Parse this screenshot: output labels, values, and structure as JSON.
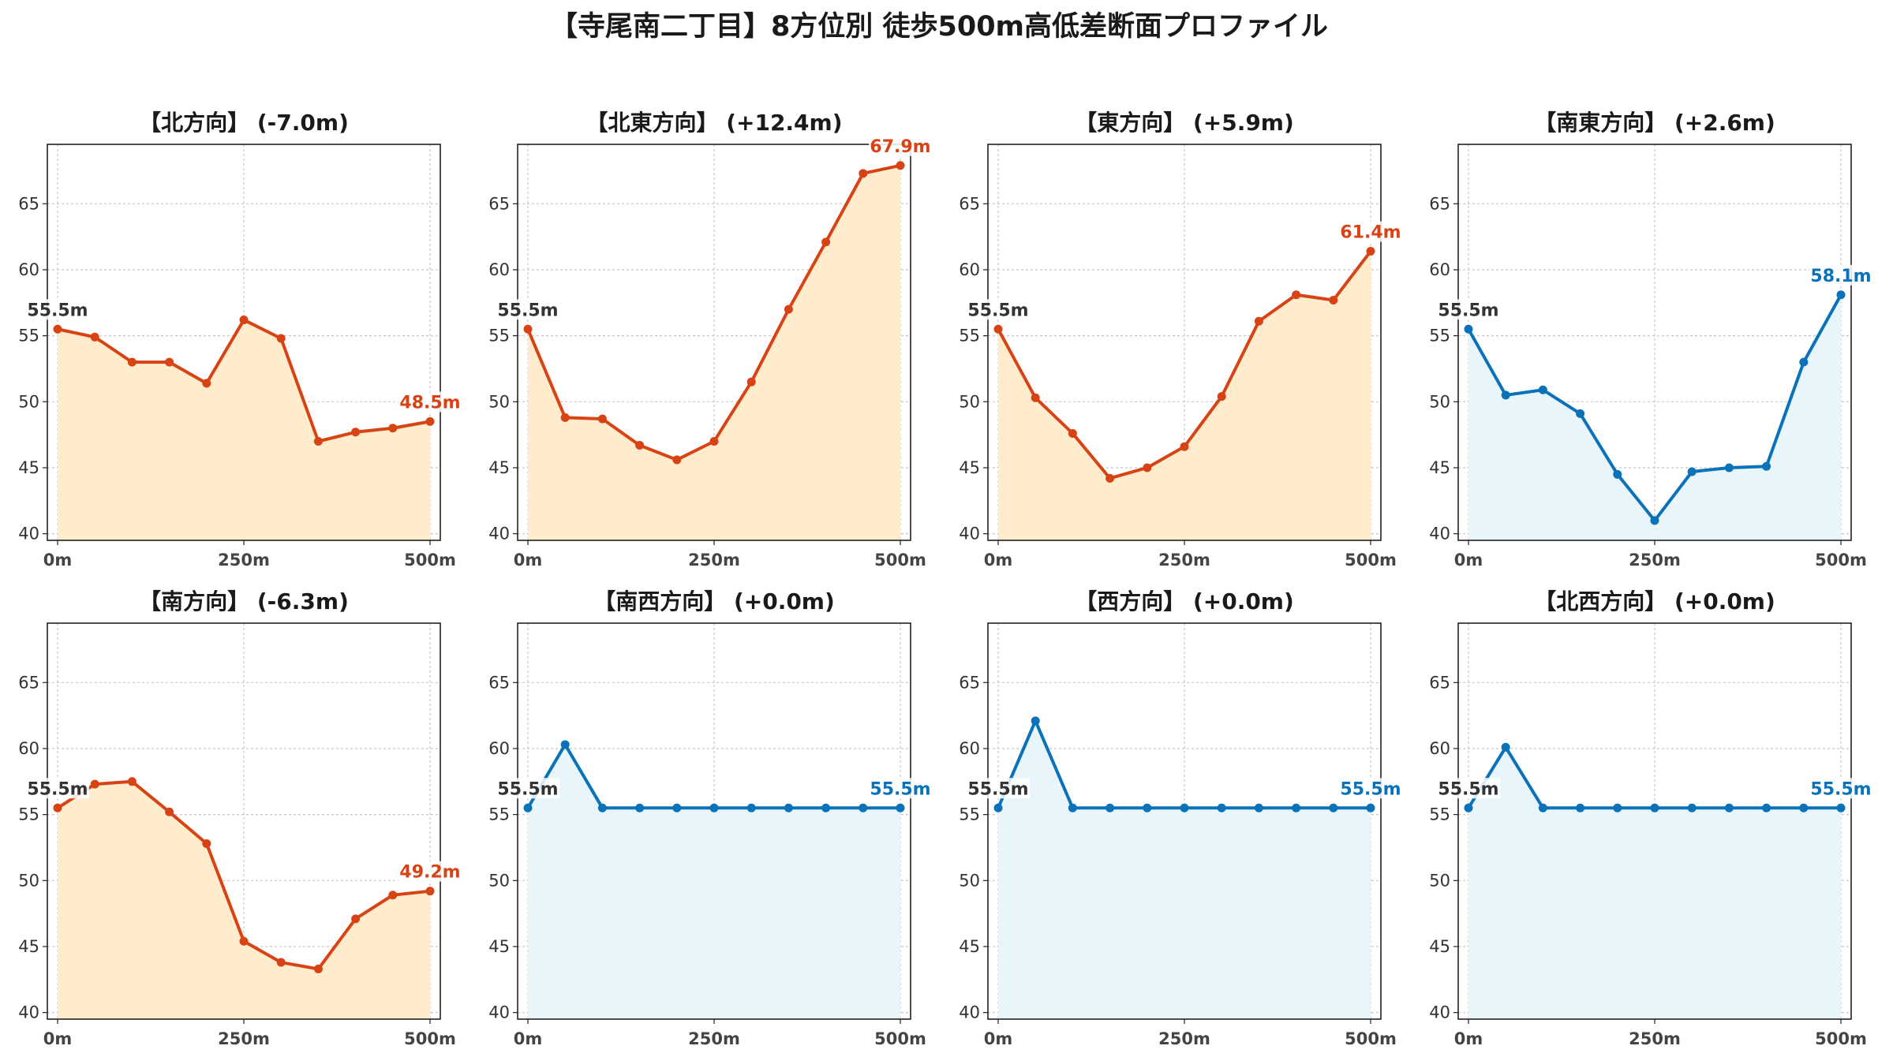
{
  "title": "【寺尾南二丁目】8方位別 徒歩500m高低差断面プロファイル",
  "colors": {
    "up_line": "#d84315",
    "up_fill": "#ffeccc",
    "down_line": "#0a72b8",
    "down_fill": "#e8f5fb",
    "start_label": "#333333"
  },
  "chart_data": [
    {
      "type": "line",
      "title": "【北方向】 (-7.0m)",
      "trend": "up",
      "x": [
        0,
        50,
        100,
        150,
        200,
        250,
        300,
        350,
        400,
        450,
        500
      ],
      "y": [
        55.5,
        54.9,
        53.0,
        53.0,
        51.4,
        56.2,
        54.8,
        47.0,
        47.7,
        48.0,
        48.5
      ],
      "start_label": "55.5m",
      "end_label": "48.5m",
      "xticks": [
        "0m",
        "250m",
        "500m"
      ],
      "yticks": [
        40,
        45,
        50,
        55,
        60,
        65
      ],
      "ylim": [
        39.5,
        69.5
      ],
      "grid": true
    },
    {
      "type": "line",
      "title": "【北東方向】 (+12.4m)",
      "trend": "up",
      "x": [
        0,
        50,
        100,
        150,
        200,
        250,
        300,
        350,
        400,
        450,
        500
      ],
      "y": [
        55.5,
        48.8,
        48.7,
        46.7,
        45.6,
        47.0,
        51.5,
        57.0,
        62.1,
        67.3,
        67.9
      ],
      "start_label": "55.5m",
      "end_label": "67.9m",
      "xticks": [
        "0m",
        "250m",
        "500m"
      ],
      "yticks": [
        40,
        45,
        50,
        55,
        60,
        65
      ],
      "ylim": [
        39.5,
        69.5
      ],
      "grid": true
    },
    {
      "type": "line",
      "title": "【東方向】 (+5.9m)",
      "trend": "up",
      "x": [
        0,
        50,
        100,
        150,
        200,
        250,
        300,
        350,
        400,
        450,
        500
      ],
      "y": [
        55.5,
        50.3,
        47.6,
        44.2,
        45.0,
        46.6,
        50.4,
        56.1,
        58.1,
        57.7,
        61.4
      ],
      "start_label": "55.5m",
      "end_label": "61.4m",
      "xticks": [
        "0m",
        "250m",
        "500m"
      ],
      "yticks": [
        40,
        45,
        50,
        55,
        60,
        65
      ],
      "ylim": [
        39.5,
        69.5
      ],
      "grid": true
    },
    {
      "type": "line",
      "title": "【南東方向】 (+2.6m)",
      "trend": "down",
      "x": [
        0,
        50,
        100,
        150,
        200,
        250,
        300,
        350,
        400,
        450,
        500
      ],
      "y": [
        55.5,
        50.5,
        50.9,
        49.1,
        44.5,
        41.0,
        44.7,
        45.0,
        45.1,
        53.0,
        58.1
      ],
      "start_label": "55.5m",
      "end_label": "58.1m",
      "xticks": [
        "0m",
        "250m",
        "500m"
      ],
      "yticks": [
        40,
        45,
        50,
        55,
        60,
        65
      ],
      "ylim": [
        39.5,
        69.5
      ],
      "grid": true
    },
    {
      "type": "line",
      "title": "【南方向】 (-6.3m)",
      "trend": "up",
      "x": [
        0,
        50,
        100,
        150,
        200,
        250,
        300,
        350,
        400,
        450,
        500
      ],
      "y": [
        55.5,
        57.3,
        57.5,
        55.2,
        52.8,
        45.4,
        43.8,
        43.3,
        47.1,
        48.9,
        49.2
      ],
      "start_label": "55.5m",
      "end_label": "49.2m",
      "xticks": [
        "0m",
        "250m",
        "500m"
      ],
      "yticks": [
        40,
        45,
        50,
        55,
        60,
        65
      ],
      "ylim": [
        39.5,
        69.5
      ],
      "grid": true
    },
    {
      "type": "line",
      "title": "【南西方向】 (+0.0m)",
      "trend": "down",
      "x": [
        0,
        50,
        100,
        150,
        200,
        250,
        300,
        350,
        400,
        450,
        500
      ],
      "y": [
        55.5,
        60.3,
        55.5,
        55.5,
        55.5,
        55.5,
        55.5,
        55.5,
        55.5,
        55.5,
        55.5
      ],
      "start_label": "55.5m",
      "end_label": "55.5m",
      "xticks": [
        "0m",
        "250m",
        "500m"
      ],
      "yticks": [
        40,
        45,
        50,
        55,
        60,
        65
      ],
      "ylim": [
        39.5,
        69.5
      ],
      "grid": true
    },
    {
      "type": "line",
      "title": "【西方向】 (+0.0m)",
      "trend": "down",
      "x": [
        0,
        50,
        100,
        150,
        200,
        250,
        300,
        350,
        400,
        450,
        500
      ],
      "y": [
        55.5,
        62.1,
        55.5,
        55.5,
        55.5,
        55.5,
        55.5,
        55.5,
        55.5,
        55.5,
        55.5
      ],
      "start_label": "55.5m",
      "end_label": "55.5m",
      "xticks": [
        "0m",
        "250m",
        "500m"
      ],
      "yticks": [
        40,
        45,
        50,
        55,
        60,
        65
      ],
      "ylim": [
        39.5,
        69.5
      ],
      "grid": true
    },
    {
      "type": "line",
      "title": "【北西方向】 (+0.0m)",
      "trend": "down",
      "x": [
        0,
        50,
        100,
        150,
        200,
        250,
        300,
        350,
        400,
        450,
        500
      ],
      "y": [
        55.5,
        60.1,
        55.5,
        55.5,
        55.5,
        55.5,
        55.5,
        55.5,
        55.5,
        55.5,
        55.5
      ],
      "start_label": "55.5m",
      "end_label": "55.5m",
      "xticks": [
        "0m",
        "250m",
        "500m"
      ],
      "yticks": [
        40,
        45,
        50,
        55,
        60,
        65
      ],
      "ylim": [
        39.5,
        69.5
      ],
      "grid": true
    }
  ]
}
